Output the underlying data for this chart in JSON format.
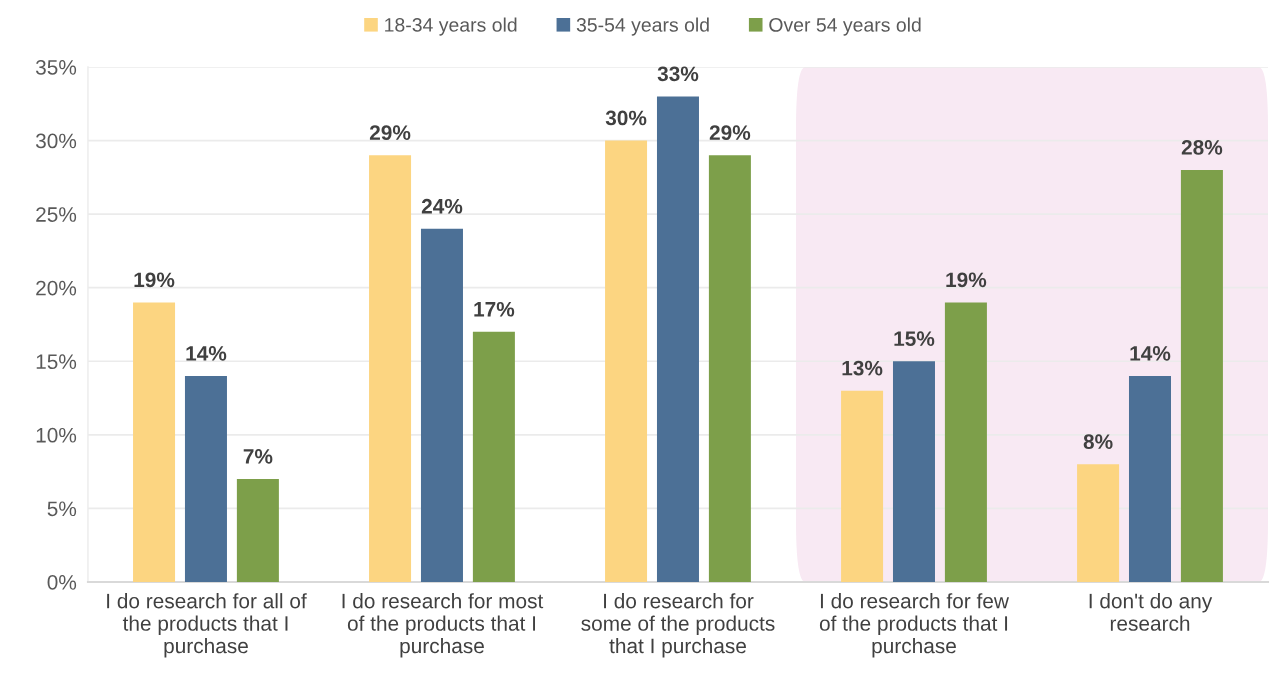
{
  "chart_data": {
    "type": "bar",
    "categories": [
      "I do research for all of\nthe products that I\npurchase",
      "I do research for most\nof the products that I\npurchase",
      "I do research for\nsome of the products\nthat I purchase",
      "I do research for few\nof the products that I\npurchase",
      "I don't do any\nresearch"
    ],
    "series": [
      {
        "name": "18-34 years old",
        "color": "#fcd581",
        "values": [
          19,
          29,
          30,
          13,
          8
        ],
        "value_labels": [
          "19%",
          "29%",
          "30%",
          "13%",
          "8%"
        ]
      },
      {
        "name": "35-54 years old",
        "color": "#4c7096",
        "values": [
          14,
          24,
          33,
          15,
          14
        ],
        "value_labels": [
          "14%",
          "24%",
          "33%",
          "15%",
          "14%"
        ]
      },
      {
        "name": "Over 54 years old",
        "color": "#7d9f4a",
        "values": [
          7,
          17,
          29,
          19,
          28
        ],
        "value_labels": [
          "7%",
          "17%",
          "29%",
          "19%",
          "28%"
        ]
      }
    ],
    "ylim": [
      0,
      35
    ],
    "yticks": [
      {
        "value": 0,
        "label": "0%"
      },
      {
        "value": 5,
        "label": "5%"
      },
      {
        "value": 10,
        "label": "10%"
      },
      {
        "value": 15,
        "label": "15%"
      },
      {
        "value": 20,
        "label": "20%"
      },
      {
        "value": 25,
        "label": "25%"
      },
      {
        "value": 30,
        "label": "30%"
      },
      {
        "value": 35,
        "label": "35%"
      }
    ],
    "bands": [
      {
        "axis": "x",
        "from": "I do research for few\nof the products that I\npurchase",
        "to": "I don't do any\nresearch",
        "color": "#f8e9f3"
      }
    ],
    "grid": "y",
    "legend": "top"
  }
}
